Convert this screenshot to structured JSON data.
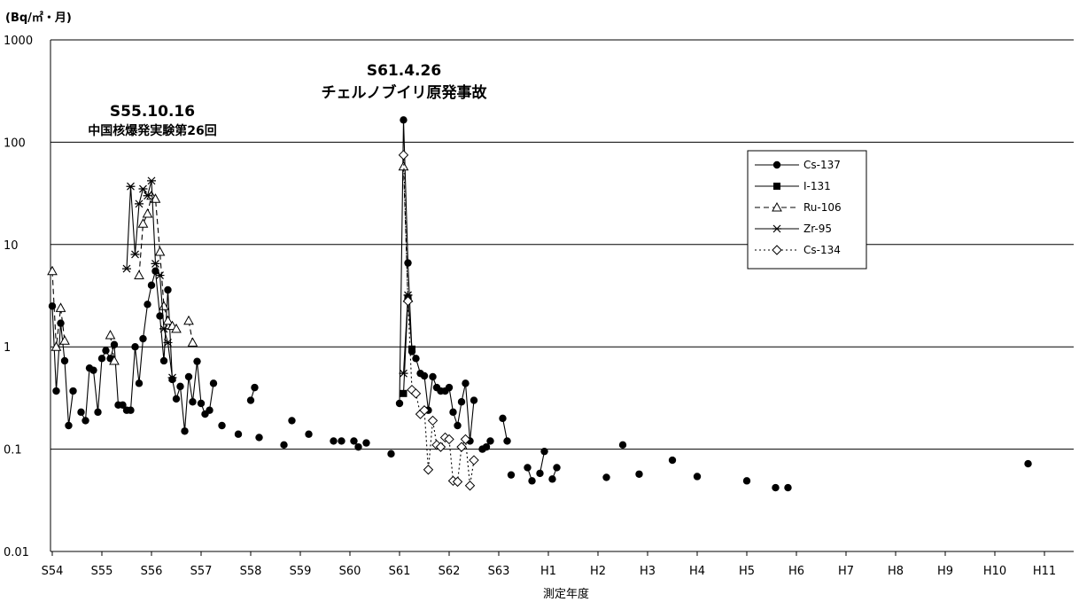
{
  "chart_data": {
    "type": "line",
    "y_unit": "(Bq/㎡・月)",
    "xlabel": "測定年度",
    "y_scale": "log",
    "ylim": [
      0.01,
      1000
    ],
    "y_ticks": [
      "1000",
      "100",
      "10",
      "1",
      "0.1",
      "0.01"
    ],
    "x_ticks": [
      "S54",
      "S55",
      "S56",
      "S57",
      "S58",
      "S59",
      "S60",
      "S61",
      "S62",
      "S63",
      "H1",
      "H2",
      "H3",
      "H4",
      "H5",
      "H6",
      "H7",
      "H8",
      "H9",
      "H10",
      "H11"
    ],
    "x_range": [
      1979,
      1999.6
    ],
    "grid": true,
    "legend_position": "right",
    "annotations": [
      {
        "lines": [
          "S61.4.26",
          "チェルノブイリ原発事故"
        ]
      },
      {
        "lines": [
          "S55.10.16",
          "中国核爆発実験第26回"
        ]
      }
    ],
    "series": [
      {
        "name": "Cs-137",
        "marker": "filled-circle",
        "line": "solid",
        "segments": [
          [
            [
              1979.0,
              2.5
            ],
            [
              1979.08,
              0.37
            ],
            [
              1979.17,
              1.7
            ],
            [
              1979.25,
              0.73
            ],
            [
              1979.33,
              0.17
            ],
            [
              1979.42,
              0.37
            ]
          ],
          [
            [
              1979.58,
              0.23
            ],
            [
              1979.67,
              0.19
            ],
            [
              1979.75,
              0.62
            ],
            [
              1979.83,
              0.59
            ],
            [
              1979.92,
              0.23
            ],
            [
              1980.0,
              0.77
            ],
            [
              1980.08,
              0.92
            ],
            [
              1980.17,
              0.77
            ],
            [
              1980.25,
              1.05
            ],
            [
              1980.33,
              0.27
            ],
            [
              1980.42,
              0.27
            ],
            [
              1980.5,
              0.24
            ],
            [
              1980.58,
              0.24
            ],
            [
              1980.67,
              1.0
            ],
            [
              1980.75,
              0.44
            ],
            [
              1980.83,
              1.2
            ],
            [
              1980.92,
              2.6
            ],
            [
              1981.0,
              4.0
            ],
            [
              1981.08,
              5.5
            ],
            [
              1981.17,
              2.0
            ],
            [
              1981.25,
              0.73
            ],
            [
              1981.33,
              3.6
            ],
            [
              1981.42,
              0.48
            ],
            [
              1981.5,
              0.31
            ],
            [
              1981.58,
              0.41
            ],
            [
              1981.67,
              0.15
            ],
            [
              1981.75,
              0.51
            ],
            [
              1981.83,
              0.29
            ],
            [
              1981.92,
              0.72
            ],
            [
              1982.0,
              0.28
            ],
            [
              1982.08,
              0.22
            ],
            [
              1982.17,
              0.24
            ],
            [
              1982.25,
              0.44
            ]
          ],
          [
            [
              1982.42,
              0.17
            ]
          ],
          [
            [
              1982.75,
              0.14
            ]
          ],
          [
            [
              1983.0,
              0.3
            ],
            [
              1983.08,
              0.4
            ]
          ],
          [
            [
              1983.17,
              0.13
            ]
          ],
          [
            [
              1983.67,
              0.11
            ]
          ],
          [
            [
              1983.83,
              0.19
            ]
          ],
          [
            [
              1984.17,
              0.14
            ]
          ],
          [
            [
              1984.67,
              0.12
            ]
          ],
          [
            [
              1984.83,
              0.12
            ]
          ],
          [
            [
              1985.08,
              0.12
            ],
            [
              1985.17,
              0.105
            ]
          ],
          [
            [
              1985.33,
              0.115
            ]
          ],
          [
            [
              1985.83,
              0.09
            ]
          ],
          [
            [
              1986.0,
              0.28
            ],
            [
              1986.08,
              165
            ],
            [
              1986.17,
              6.6
            ],
            [
              1986.25,
              0.9
            ],
            [
              1986.33,
              0.77
            ],
            [
              1986.42,
              0.55
            ],
            [
              1986.5,
              0.52
            ],
            [
              1986.58,
              0.24
            ],
            [
              1986.67,
              0.51
            ],
            [
              1986.75,
              0.4
            ],
            [
              1986.83,
              0.37
            ],
            [
              1986.92,
              0.37
            ],
            [
              1987.0,
              0.4
            ],
            [
              1987.08,
              0.23
            ],
            [
              1987.17,
              0.17
            ],
            [
              1987.25,
              0.29
            ],
            [
              1987.33,
              0.44
            ],
            [
              1987.42,
              0.12
            ],
            [
              1987.5,
              0.3
            ]
          ],
          [
            [
              1987.67,
              0.1
            ],
            [
              1987.75,
              0.105
            ],
            [
              1987.83,
              0.12
            ]
          ],
          [
            [
              1988.08,
              0.2
            ],
            [
              1988.17,
              0.12
            ]
          ],
          [
            [
              1988.25,
              0.056
            ]
          ],
          [
            [
              1988.58,
              0.066
            ],
            [
              1988.67,
              0.049
            ]
          ],
          [
            [
              1988.83,
              0.058
            ],
            [
              1988.92,
              0.095
            ]
          ],
          [
            [
              1989.08,
              0.051
            ],
            [
              1989.17,
              0.066
            ]
          ],
          [
            [
              1990.17,
              0.053
            ]
          ],
          [
            [
              1990.5,
              0.11
            ]
          ],
          [
            [
              1990.83,
              0.057
            ]
          ],
          [
            [
              1991.5,
              0.078
            ]
          ],
          [
            [
              1992.0,
              0.054
            ]
          ],
          [
            [
              1993.0,
              0.049
            ]
          ],
          [
            [
              1993.58,
              0.042
            ]
          ],
          [
            [
              1993.83,
              0.042
            ]
          ],
          [
            [
              1998.67,
              0.072
            ]
          ]
        ]
      },
      {
        "name": "I-131",
        "marker": "filled-square",
        "line": "solid",
        "segments": [
          [
            [
              1986.08,
              0.35
            ],
            [
              1986.17,
              3.0
            ],
            [
              1986.25,
              0.95
            ]
          ]
        ]
      },
      {
        "name": "Ru-106",
        "marker": "open-triangle",
        "line": "dashed",
        "segments": [
          [
            [
              1979.0,
              5.5
            ],
            [
              1979.08,
              1.0
            ],
            [
              1979.17,
              2.4
            ],
            [
              1979.25,
              1.15
            ]
          ],
          [
            [
              1980.17,
              1.3
            ],
            [
              1980.25,
              0.73
            ]
          ],
          [
            [
              1980.75,
              5.0
            ],
            [
              1980.83,
              16
            ],
            [
              1980.92,
              20
            ],
            [
              1981.0,
              30
            ],
            [
              1981.08,
              28
            ],
            [
              1981.17,
              8.5
            ],
            [
              1981.25,
              2.5
            ],
            [
              1981.33,
              1.8
            ],
            [
              1981.42,
              1.6
            ],
            [
              1981.5,
              1.5
            ]
          ],
          [
            [
              1981.75,
              1.8
            ],
            [
              1981.83,
              1.1
            ]
          ],
          [
            [
              1986.08,
              58
            ],
            [
              1986.17,
              3.0
            ]
          ]
        ]
      },
      {
        "name": "Zr-95",
        "marker": "asterisk",
        "line": "solid",
        "segments": [
          [
            [
              1980.5,
              5.8
            ],
            [
              1980.58,
              37
            ],
            [
              1980.67,
              8.0
            ],
            [
              1980.75,
              25
            ],
            [
              1980.83,
              35
            ],
            [
              1980.92,
              30
            ],
            [
              1981.0,
              42
            ],
            [
              1981.08,
              6.5
            ],
            [
              1981.17,
              5.0
            ],
            [
              1981.25,
              1.5
            ],
            [
              1981.33,
              1.1
            ],
            [
              1981.42,
              0.5
            ]
          ],
          [
            [
              1986.08,
              0.55
            ],
            [
              1986.17,
              3.2
            ]
          ]
        ]
      },
      {
        "name": "Cs-134",
        "marker": "open-diamond",
        "line": "dotted",
        "segments": [
          [
            [
              1986.08,
              75
            ],
            [
              1986.17,
              2.8
            ],
            [
              1986.25,
              0.38
            ],
            [
              1986.33,
              0.35
            ],
            [
              1986.42,
              0.22
            ],
            [
              1986.5,
              0.24
            ],
            [
              1986.58,
              0.063
            ],
            [
              1986.67,
              0.19
            ],
            [
              1986.75,
              0.11
            ],
            [
              1986.83,
              0.105
            ],
            [
              1986.92,
              0.13
            ],
            [
              1987.0,
              0.125
            ],
            [
              1987.08,
              0.049
            ],
            [
              1987.17,
              0.048
            ],
            [
              1987.25,
              0.105
            ],
            [
              1987.33,
              0.125
            ],
            [
              1987.42,
              0.044
            ],
            [
              1987.5,
              0.078
            ]
          ]
        ]
      }
    ]
  }
}
